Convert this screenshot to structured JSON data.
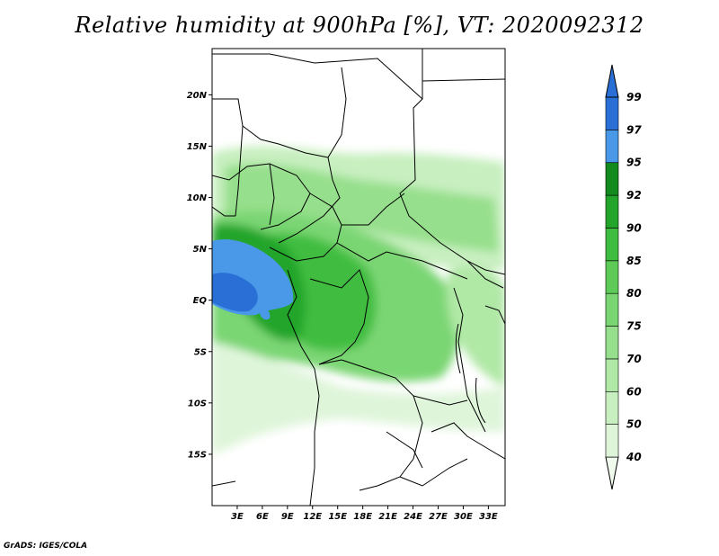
{
  "title": "Relative humidity at 900hPa [%], VT: 2020092312",
  "credit": "GrADS: IGES/COLA",
  "map": {
    "lon_range": [
      0,
      35
    ],
    "lat_range": [
      -20,
      24.5
    ],
    "lat_ticks": [
      {
        "value": 20,
        "label": "20N"
      },
      {
        "value": 15,
        "label": "15N"
      },
      {
        "value": 10,
        "label": "10N"
      },
      {
        "value": 5,
        "label": "5N"
      },
      {
        "value": 0,
        "label": "EQ"
      },
      {
        "value": -5,
        "label": "5S"
      },
      {
        "value": -10,
        "label": "10S"
      },
      {
        "value": -15,
        "label": "15S"
      }
    ],
    "lon_ticks": [
      {
        "value": 3,
        "label": "3E"
      },
      {
        "value": 6,
        "label": "6E"
      },
      {
        "value": 9,
        "label": "9E"
      },
      {
        "value": 12,
        "label": "12E"
      },
      {
        "value": 15,
        "label": "15E"
      },
      {
        "value": 18,
        "label": "18E"
      },
      {
        "value": 21,
        "label": "21E"
      },
      {
        "value": 24,
        "label": "24E"
      },
      {
        "value": 27,
        "label": "27E"
      },
      {
        "value": 30,
        "label": "30E"
      },
      {
        "value": 33,
        "label": "33E"
      }
    ]
  },
  "colorbar": {
    "levels": [
      "40",
      "50",
      "60",
      "70",
      "75",
      "80",
      "85",
      "90",
      "92",
      "95",
      "97",
      "99"
    ],
    "colors": [
      "#f0fbee",
      "#dff5da",
      "#c8efc0",
      "#b0e8a6",
      "#96df8c",
      "#7ad673",
      "#5ecb59",
      "#3fbd40",
      "#22a52a",
      "#128a1e",
      "#4a98e8",
      "#2a6fd6",
      "#2a6fd6"
    ]
  }
}
